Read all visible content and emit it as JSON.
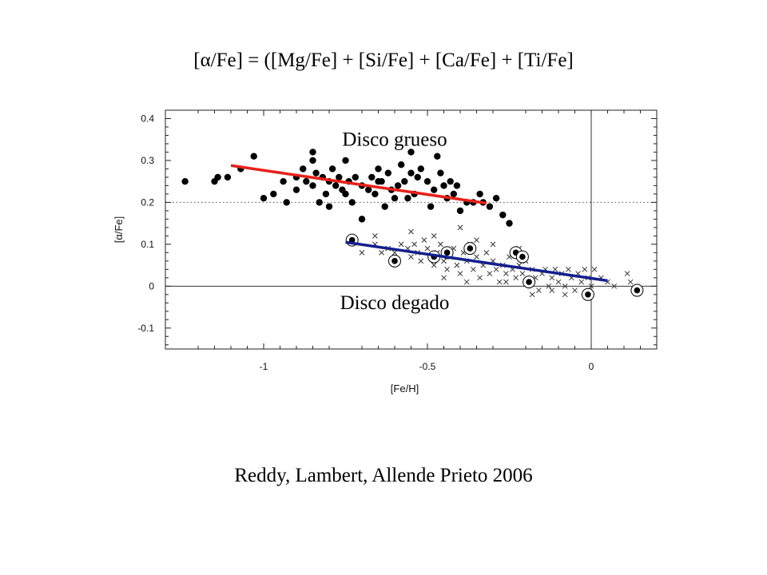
{
  "slide": {
    "title": "[α/Fe] = ([Mg/Fe] + [Si/Fe] + [Ca/Fe] + [Ti/Fe]",
    "citation": "Reddy, Lambert, Allende Prieto 2006"
  },
  "chart_data": {
    "type": "scatter",
    "xlabel": "[Fe/H]",
    "ylabel": "[α/Fe]",
    "xlim": [
      -1.3,
      0.2
    ],
    "ylim": [
      -0.15,
      0.42
    ],
    "xticks": [
      {
        "value": -1,
        "label": "-1"
      },
      {
        "value": -0.5,
        "label": "-0.5"
      },
      {
        "value": 0,
        "label": "0"
      }
    ],
    "yticks": [
      {
        "value": 0.4,
        "label": "0.4"
      },
      {
        "value": 0.3,
        "label": "0.3"
      },
      {
        "value": 0.2,
        "label": "0.2"
      },
      {
        "value": 0.1,
        "label": "0.1"
      },
      {
        "value": 0,
        "label": "0"
      },
      {
        "value": -0.1,
        "label": "-0.1"
      }
    ],
    "reference_lines": [
      {
        "axis": "y",
        "value": 0.2,
        "style": "dotted"
      },
      {
        "axis": "y",
        "value": 0,
        "style": "solid"
      },
      {
        "axis": "x",
        "value": 0,
        "style": "solid"
      }
    ],
    "annotations": [
      {
        "text": "Disco grueso",
        "x": -0.6,
        "y": 0.335
      },
      {
        "text": "Disco degado",
        "x": -0.6,
        "y": -0.055
      }
    ],
    "trend_lines": [
      {
        "name": "thick-disk-fit",
        "color": "#e8201a",
        "x": [
          -1.1,
          -0.32
        ],
        "y": [
          0.288,
          0.198
        ]
      },
      {
        "name": "thin-disk-fit",
        "color": "#13208e",
        "x": [
          -0.75,
          0.05
        ],
        "y": [
          0.105,
          0.013
        ]
      }
    ],
    "series": [
      {
        "marker": "filled-circle",
        "points": [
          [
            -1.24,
            0.25
          ],
          [
            -1.15,
            0.25
          ],
          [
            -1.14,
            0.26
          ],
          [
            -1.11,
            0.26
          ],
          [
            -1.07,
            0.28
          ],
          [
            -1.03,
            0.31
          ],
          [
            -1.0,
            0.21
          ],
          [
            -0.94,
            0.25
          ],
          [
            -0.93,
            0.2
          ],
          [
            -0.9,
            0.23
          ],
          [
            -0.9,
            0.26
          ],
          [
            -0.88,
            0.28
          ],
          [
            -0.87,
            0.25
          ],
          [
            -0.85,
            0.3
          ],
          [
            -0.85,
            0.32
          ],
          [
            -0.85,
            0.24
          ],
          [
            -0.84,
            0.27
          ],
          [
            -0.83,
            0.2
          ],
          [
            -0.82,
            0.26
          ],
          [
            -0.81,
            0.22
          ],
          [
            -0.8,
            0.25
          ],
          [
            -0.8,
            0.19
          ],
          [
            -0.79,
            0.28
          ],
          [
            -0.78,
            0.24
          ],
          [
            -0.77,
            0.26
          ],
          [
            -0.76,
            0.23
          ],
          [
            -0.75,
            0.22
          ],
          [
            -0.74,
            0.25
          ],
          [
            -0.73,
            0.2
          ],
          [
            -0.72,
            0.26
          ],
          [
            -0.7,
            0.16
          ],
          [
            -0.7,
            0.24
          ],
          [
            -0.68,
            0.23
          ],
          [
            -0.67,
            0.26
          ],
          [
            -0.66,
            0.22
          ],
          [
            -0.65,
            0.28
          ],
          [
            -0.64,
            0.25
          ],
          [
            -0.63,
            0.19
          ],
          [
            -0.62,
            0.27
          ],
          [
            -0.61,
            0.23
          ],
          [
            -0.6,
            0.21
          ],
          [
            -0.59,
            0.24
          ],
          [
            -0.58,
            0.29
          ],
          [
            -0.57,
            0.25
          ],
          [
            -0.56,
            0.21
          ],
          [
            -0.55,
            0.27
          ],
          [
            -0.54,
            0.22
          ],
          [
            -0.53,
            0.26
          ],
          [
            -0.52,
            0.28
          ],
          [
            -0.5,
            0.25
          ],
          [
            -0.49,
            0.19
          ],
          [
            -0.48,
            0.23
          ],
          [
            -0.47,
            0.31
          ],
          [
            -0.46,
            0.27
          ],
          [
            -0.45,
            0.24
          ],
          [
            -0.44,
            0.21
          ],
          [
            -0.43,
            0.25
          ],
          [
            -0.42,
            0.22
          ],
          [
            -0.41,
            0.24
          ],
          [
            -0.4,
            0.18
          ],
          [
            -0.38,
            0.2
          ],
          [
            -0.36,
            0.2
          ],
          [
            -0.34,
            0.22
          ],
          [
            -0.33,
            0.2
          ],
          [
            -0.31,
            0.19
          ],
          [
            -0.29,
            0.21
          ],
          [
            -0.27,
            0.17
          ],
          [
            -0.25,
            0.15
          ],
          [
            -0.55,
            0.32
          ],
          [
            -0.65,
            0.25
          ],
          [
            -0.75,
            0.3
          ],
          [
            -0.97,
            0.22
          ]
        ]
      },
      {
        "marker": "cross",
        "points": [
          [
            -0.72,
            0.11
          ],
          [
            -0.7,
            0.08
          ],
          [
            -0.66,
            0.1
          ],
          [
            -0.64,
            0.08
          ],
          [
            -0.62,
            0.09
          ],
          [
            -0.6,
            0.08
          ],
          [
            -0.58,
            0.1
          ],
          [
            -0.56,
            0.09
          ],
          [
            -0.55,
            0.07
          ],
          [
            -0.54,
            0.1
          ],
          [
            -0.53,
            0.08
          ],
          [
            -0.52,
            0.06
          ],
          [
            -0.51,
            0.11
          ],
          [
            -0.5,
            0.09
          ],
          [
            -0.49,
            0.07
          ],
          [
            -0.48,
            0.05
          ],
          [
            -0.47,
            0.08
          ],
          [
            -0.46,
            0.1
          ],
          [
            -0.45,
            0.06
          ],
          [
            -0.44,
            0.04
          ],
          [
            -0.43,
            0.07
          ],
          [
            -0.42,
            0.09
          ],
          [
            -0.41,
            0.05
          ],
          [
            -0.4,
            0.03
          ],
          [
            -0.39,
            0.08
          ],
          [
            -0.38,
            0.06
          ],
          [
            -0.37,
            0.1
          ],
          [
            -0.36,
            0.04
          ],
          [
            -0.35,
            0.07
          ],
          [
            -0.34,
            0.02
          ],
          [
            -0.33,
            0.05
          ],
          [
            -0.32,
            0.08
          ],
          [
            -0.31,
            0.03
          ],
          [
            -0.3,
            0.06
          ],
          [
            -0.29,
            0.04
          ],
          [
            -0.28,
            0.01
          ],
          [
            -0.27,
            0.05
          ],
          [
            -0.26,
            0.03
          ],
          [
            -0.25,
            0.07
          ],
          [
            -0.24,
            0.04
          ],
          [
            -0.23,
            0.02
          ],
          [
            -0.22,
            0.05
          ],
          [
            -0.21,
            0.03
          ],
          [
            -0.2,
            0.06
          ],
          [
            -0.19,
            0.01
          ],
          [
            -0.18,
            0.04
          ],
          [
            -0.17,
            0.02
          ],
          [
            -0.16,
            -0.01
          ],
          [
            -0.15,
            0.03
          ],
          [
            -0.14,
            0.04
          ],
          [
            -0.13,
            0.0
          ],
          [
            -0.12,
            0.02
          ],
          [
            -0.11,
            0.04
          ],
          [
            -0.1,
            0.01
          ],
          [
            -0.09,
            0.03
          ],
          [
            -0.08,
            0.0
          ],
          [
            -0.07,
            0.04
          ],
          [
            -0.06,
            0.02
          ],
          [
            -0.05,
            -0.01
          ],
          [
            -0.04,
            0.03
          ],
          [
            -0.03,
            0.01
          ],
          [
            -0.02,
            0.04
          ],
          [
            -0.01,
            0.02
          ],
          [
            0.0,
            0.0
          ],
          [
            0.01,
            0.04
          ],
          [
            0.03,
            0.02
          ],
          [
            0.05,
            0.01
          ],
          [
            0.07,
            0.0
          ],
          [
            0.11,
            0.03
          ],
          [
            0.12,
            0.01
          ],
          [
            -0.4,
            0.14
          ],
          [
            -0.55,
            0.13
          ],
          [
            -0.48,
            0.12
          ],
          [
            -0.35,
            0.11
          ],
          [
            -0.66,
            0.12
          ],
          [
            -0.3,
            0.1
          ],
          [
            -0.22,
            0.09
          ],
          [
            -0.26,
            0.01
          ],
          [
            -0.38,
            0.01
          ],
          [
            -0.45,
            0.02
          ],
          [
            -0.18,
            -0.02
          ],
          [
            -0.08,
            -0.02
          ],
          [
            -0.12,
            -0.01
          ],
          [
            -0.02,
            -0.02
          ]
        ]
      },
      {
        "marker": "circled-dot",
        "points": [
          [
            -0.73,
            0.11
          ],
          [
            -0.6,
            0.06
          ],
          [
            -0.48,
            0.07
          ],
          [
            -0.44,
            0.08
          ],
          [
            -0.37,
            0.09
          ],
          [
            -0.23,
            0.08
          ],
          [
            -0.21,
            0.07
          ],
          [
            -0.19,
            0.01
          ],
          [
            -0.01,
            -0.02
          ],
          [
            0.14,
            -0.01
          ]
        ]
      }
    ]
  }
}
